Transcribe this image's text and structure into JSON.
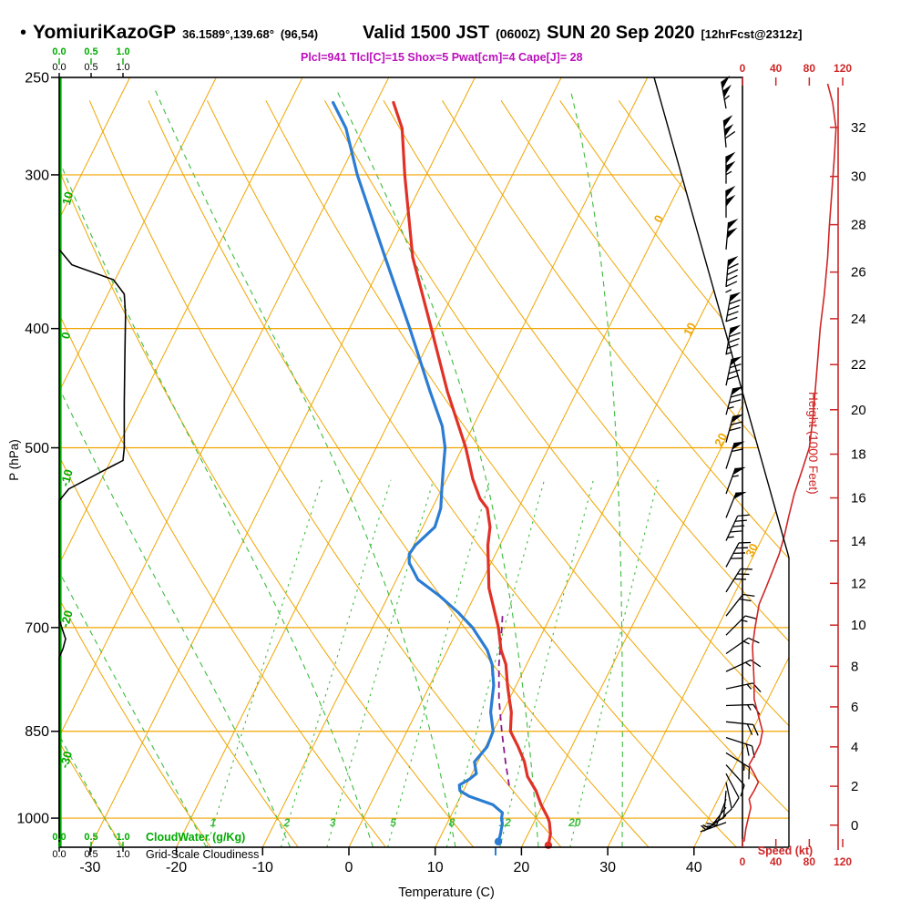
{
  "header": {
    "bullet": "•",
    "station": "YomiuriKazoGP",
    "coords": "36.1589°,139.68°",
    "grid_point": "(96,54)",
    "valid": "Valid 1500 JST",
    "valid_z": "(0600Z)",
    "date": "SUN 20 Sep 2020",
    "forecast": "[12hrFcst@2312z]"
  },
  "params": {
    "text": "Plcl=941 Tlcl[C]=15 Shox=5 Pwat[cm]=4 Cape[J]= 28",
    "plcl": 941,
    "tlcl_c": 15,
    "shox": 5,
    "pwat_cm": 4,
    "cape_j": 28
  },
  "axes": {
    "pressure": {
      "label": "P (hPa)",
      "ticks": [
        250,
        300,
        400,
        500,
        700,
        850,
        1000
      ]
    },
    "temperature": {
      "label": "Temperature (C)",
      "ticks": [
        -30,
        -20,
        -10,
        0,
        10,
        20,
        30,
        40
      ]
    },
    "height": {
      "label": "Height (1000 Feet)",
      "ticks": [
        0,
        2,
        4,
        6,
        8,
        10,
        12,
        14,
        16,
        18,
        20,
        22,
        24,
        26,
        28,
        30,
        32
      ]
    },
    "speed": {
      "label": "Speed (kt)",
      "ticks": [
        0,
        40,
        80,
        120
      ]
    },
    "cloud_scale": {
      "ticks": [
        "0.0",
        "0.5",
        "1.0"
      ],
      "cloudwater_label": "CloudWater (g/Kg)",
      "cloudiness_label": "Grid-Scale Cloudiness"
    }
  },
  "background_labels": {
    "dry_adiabat_labels": [
      10,
      0,
      -10,
      -20,
      -30
    ],
    "isotherm_labels": [
      0,
      10,
      20,
      30
    ],
    "mixing_ratio_labels": [
      1,
      2,
      3,
      5,
      8,
      12,
      20
    ]
  },
  "colors": {
    "isotherm": "#f0a500",
    "adiabat": "#f0a500",
    "moist": "#3dbb3d",
    "green_axis": "#00ab00",
    "temp": "#e03127",
    "dewpoint": "#2b7cd3",
    "parcel": "#8b1a8b",
    "barb": "#000000",
    "speed": "#cf2626",
    "height_axis": "#cf2626",
    "param_text": "#bb10bb",
    "cloudiness": "#000000"
  },
  "chart_data": {
    "type": "skewt-log-p-sounding",
    "temperature_c": {
      "pressure": [
        1052,
        1030,
        1008,
        1000,
        975,
        950,
        925,
        900,
        875,
        850,
        820,
        800,
        780,
        750,
        730,
        700,
        650,
        600,
        580,
        560,
        550,
        530,
        500,
        450,
        400,
        350,
        300,
        275,
        262
      ],
      "values": [
        23,
        22.6,
        21.8,
        21.4,
        19.8,
        18.4,
        16.6,
        15.4,
        13.8,
        12,
        11,
        10,
        9,
        7.6,
        6.2,
        4.6,
        1.2,
        -1.4,
        -2.2,
        -3.6,
        -5,
        -7,
        -9.6,
        -15,
        -20.5,
        -26.8,
        -32.5,
        -35.5,
        -38
      ]
    },
    "dewpoint_c": {
      "pressure": [
        1045,
        1030,
        1010,
        1000,
        990,
        975,
        960,
        950,
        940,
        930,
        920,
        900,
        875,
        850,
        820,
        800,
        780,
        750,
        730,
        700,
        680,
        660,
        640,
        620,
        610,
        600,
        580,
        560,
        540,
        520,
        500,
        480,
        450,
        400,
        350,
        300,
        275,
        262
      ],
      "values": [
        17,
        16.8,
        16.4,
        16,
        15.8,
        14.2,
        11,
        9.6,
        9.2,
        10,
        10.5,
        9.6,
        10.2,
        10,
        8.6,
        8,
        7.4,
        6,
        4.6,
        1.6,
        -1,
        -4,
        -7.5,
        -9.5,
        -10,
        -9.8,
        -8.6,
        -9,
        -10,
        -11,
        -12,
        -13.6,
        -17,
        -23,
        -30,
        -38,
        -42,
        -45
      ]
    },
    "parcel_c": {
      "pressure": [
        941,
        900,
        850,
        800,
        750,
        700,
        685
      ],
      "values": [
        15,
        13.2,
        11,
        8.8,
        6.8,
        5,
        4.4
      ]
    },
    "surface_markers": {
      "temp_c": 23,
      "dewpoint_c": 17
    },
    "wind_barbs": [
      {
        "p": 265,
        "kt": 105,
        "dir": 350
      },
      {
        "p": 285,
        "kt": 108,
        "dir": 355
      },
      {
        "p": 305,
        "kt": 105,
        "dir": 0
      },
      {
        "p": 325,
        "kt": 100,
        "dir": 0
      },
      {
        "p": 345,
        "kt": 100,
        "dir": 5
      },
      {
        "p": 370,
        "kt": 95,
        "dir": 5
      },
      {
        "p": 395,
        "kt": 90,
        "dir": 10
      },
      {
        "p": 420,
        "kt": 85,
        "dir": 10
      },
      {
        "p": 445,
        "kt": 80,
        "dir": 12
      },
      {
        "p": 470,
        "kt": 75,
        "dir": 15
      },
      {
        "p": 495,
        "kt": 70,
        "dir": 15
      },
      {
        "p": 520,
        "kt": 62,
        "dir": 18
      },
      {
        "p": 545,
        "kt": 57,
        "dir": 20
      },
      {
        "p": 570,
        "kt": 52,
        "dir": 22
      },
      {
        "p": 595,
        "kt": 47,
        "dir": 25
      },
      {
        "p": 625,
        "kt": 38,
        "dir": 28
      },
      {
        "p": 655,
        "kt": 28,
        "dir": 32
      },
      {
        "p": 685,
        "kt": 20,
        "dir": 38
      },
      {
        "p": 710,
        "kt": 16,
        "dir": 45
      },
      {
        "p": 735,
        "kt": 14,
        "dir": 55
      },
      {
        "p": 760,
        "kt": 13,
        "dir": 65
      },
      {
        "p": 785,
        "kt": 13,
        "dir": 78
      },
      {
        "p": 810,
        "kt": 15,
        "dir": 88
      },
      {
        "p": 835,
        "kt": 18,
        "dir": 96
      },
      {
        "p": 860,
        "kt": 19,
        "dir": 108
      },
      {
        "p": 885,
        "kt": 13,
        "dir": 122
      },
      {
        "p": 905,
        "kt": 11,
        "dir": 138
      },
      {
        "p": 920,
        "kt": 11,
        "dir": 152
      },
      {
        "p": 935,
        "kt": 12,
        "dir": 168
      },
      {
        "p": 950,
        "kt": 10,
        "dir": 185
      },
      {
        "p": 965,
        "kt": 8,
        "dir": 200
      },
      {
        "p": 980,
        "kt": 7,
        "dir": 218
      },
      {
        "p": 995,
        "kt": 6,
        "dir": 235
      },
      {
        "p": 1008,
        "kt": 5,
        "dir": 250
      }
    ],
    "wind_speed_kt": {
      "pressure": [
        253,
        262,
        275,
        290,
        310,
        330,
        350,
        375,
        400,
        425,
        450,
        475,
        500,
        520,
        545,
        570,
        590,
        610,
        630,
        650,
        670,
        700,
        725,
        750,
        775,
        800,
        825,
        850,
        870,
        890,
        905,
        920,
        935,
        950,
        965,
        980,
        1000,
        1020,
        1045
      ],
      "values": [
        102,
        108,
        112,
        110,
        107,
        104,
        102,
        98,
        93,
        90,
        87,
        84,
        80,
        72,
        62,
        55,
        50,
        44,
        36,
        28,
        20,
        15,
        12,
        13,
        14,
        14,
        19,
        24,
        21,
        14,
        8,
        14,
        19,
        14,
        8,
        10,
        7,
        4,
        2
      ]
    },
    "cloudiness": {
      "pressure": [
        345,
        355,
        365,
        375,
        390,
        420,
        460,
        500,
        512,
        525,
        540,
        552,
        690,
        705,
        715,
        728,
        740,
        1056
      ],
      "values": [
        0,
        0.2,
        0.85,
        1.02,
        1.04,
        1.03,
        1.02,
        1.02,
        1.0,
        0.6,
        0.15,
        0,
        0,
        0.06,
        0.1,
        0.06,
        0,
        0
      ]
    },
    "cloudwater_gkg": {
      "pressure": [
        250,
        1056
      ],
      "values": [
        0,
        0
      ]
    }
  }
}
